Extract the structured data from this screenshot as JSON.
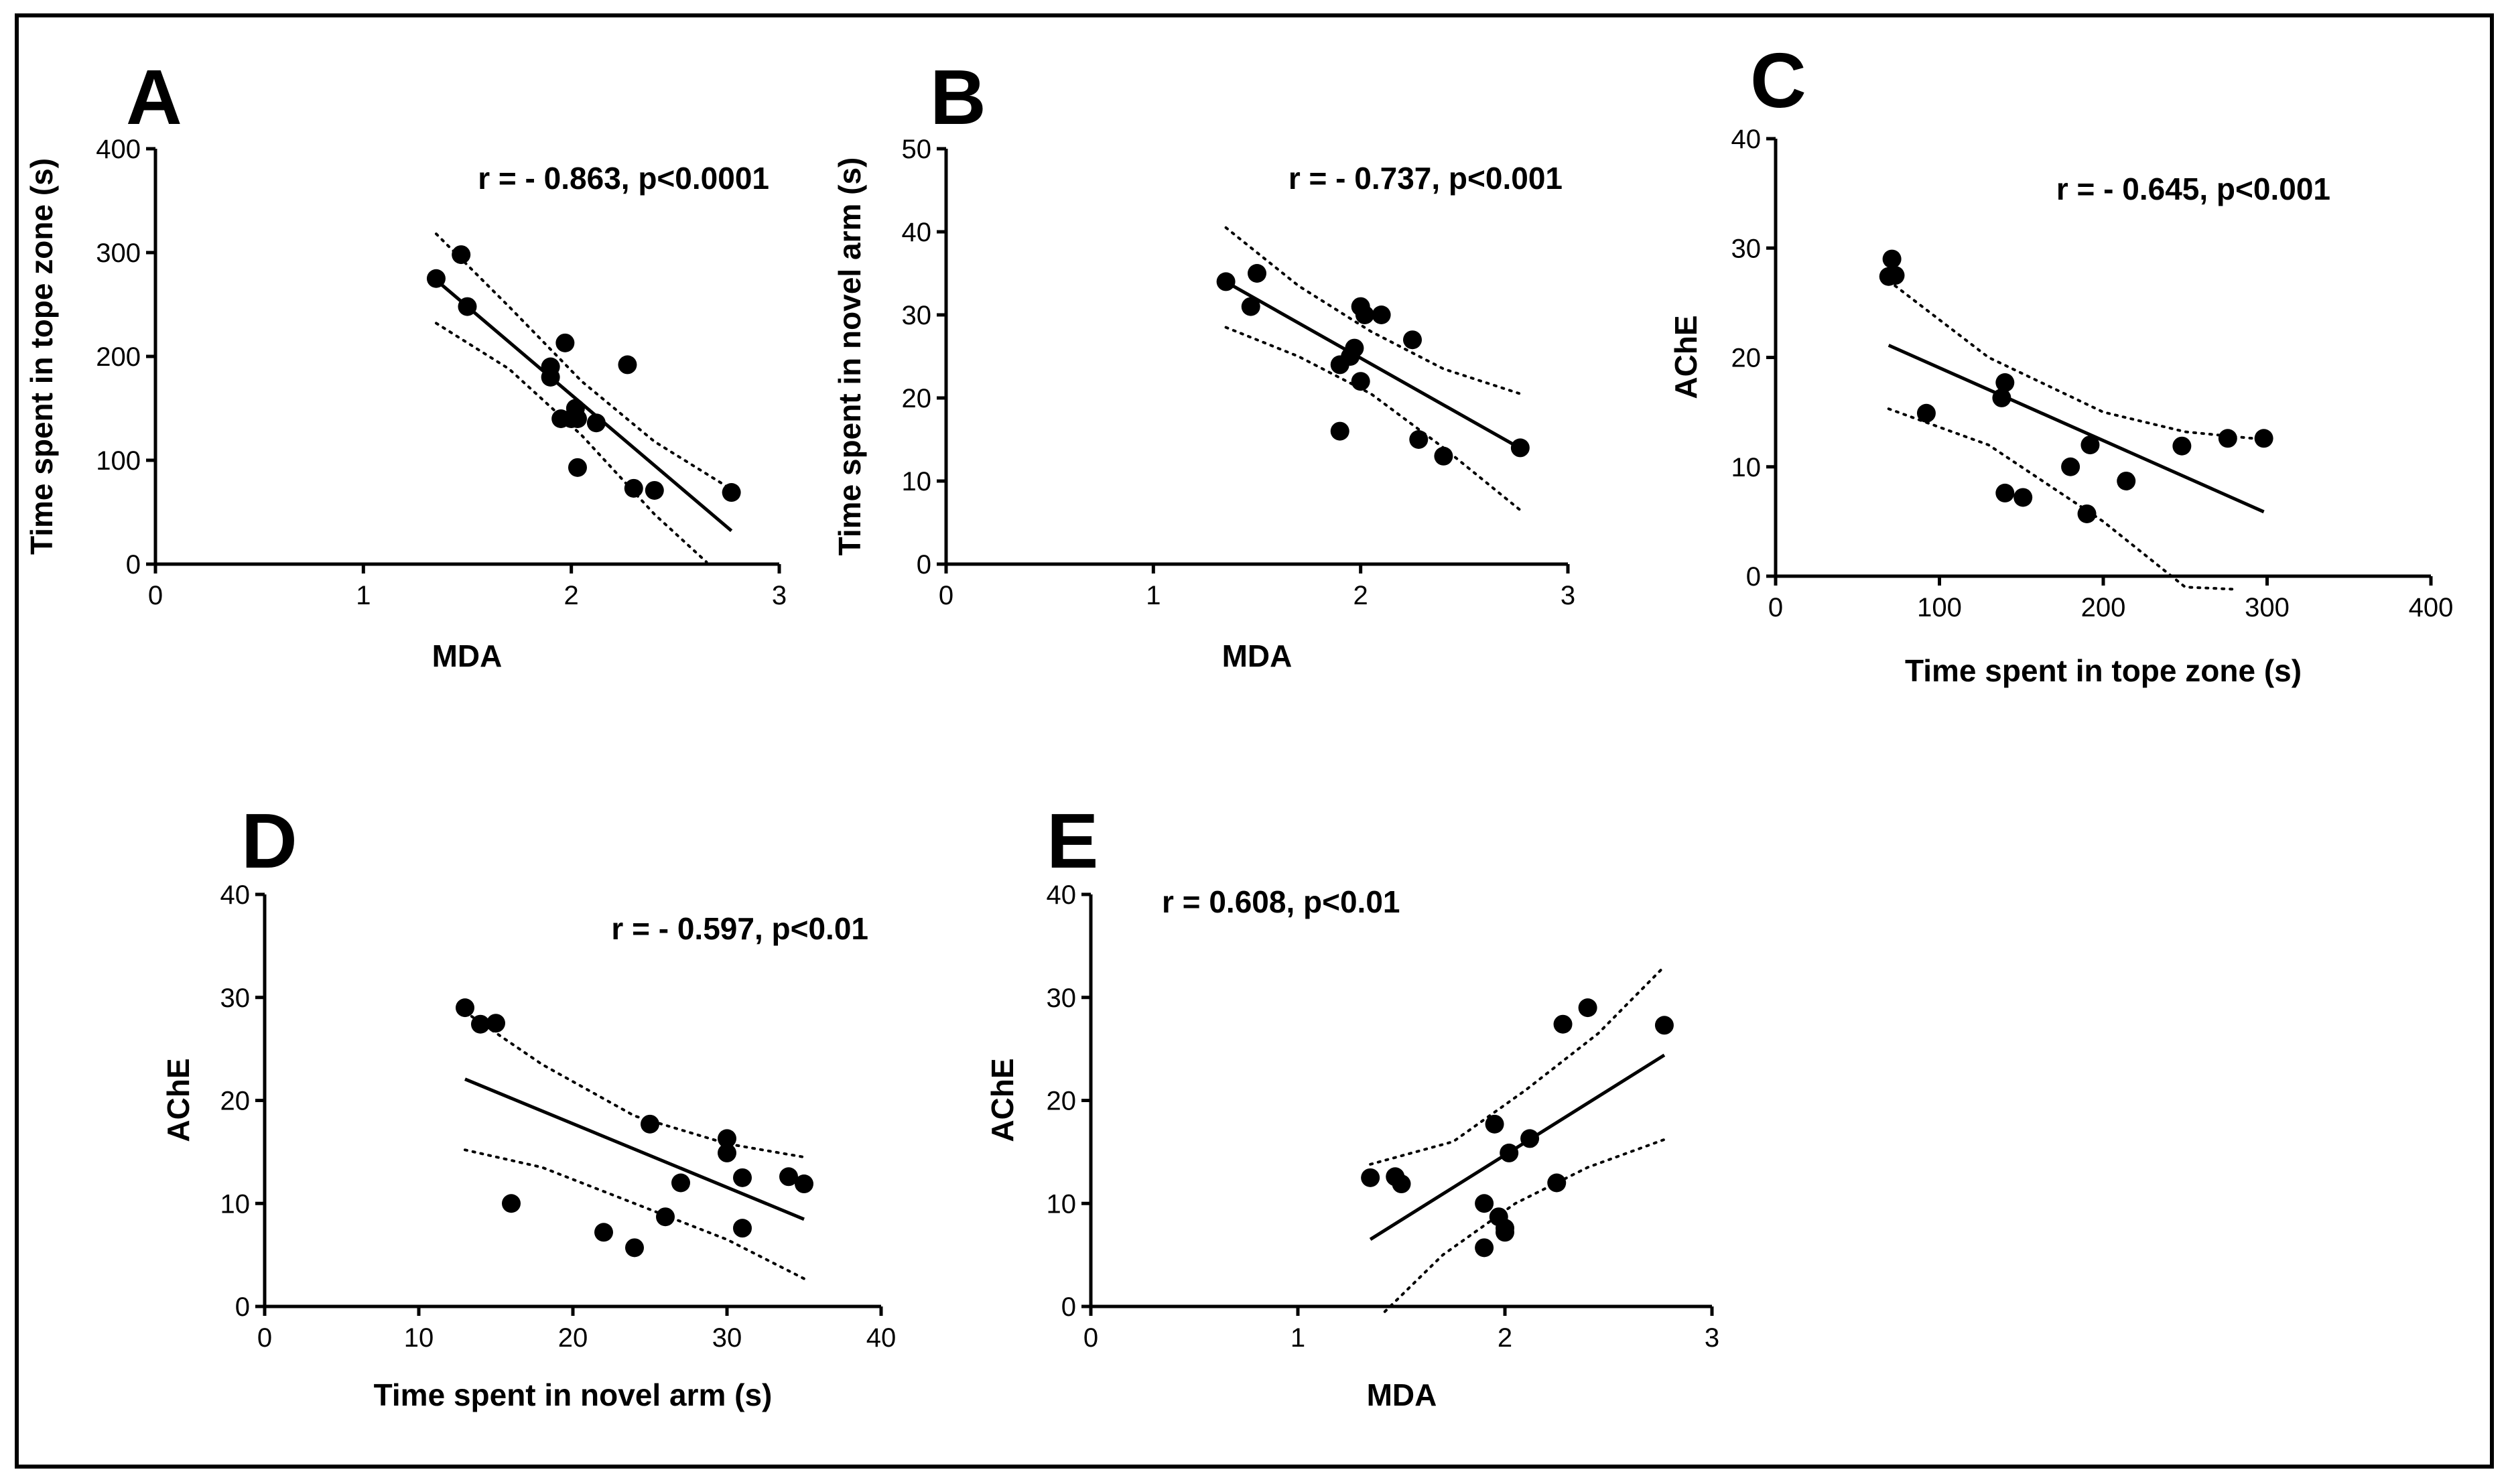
{
  "figure": {
    "border": "single black frame"
  },
  "chart_data": [
    {
      "id": "A",
      "panel_label": "A",
      "type": "scatter",
      "xlabel": "MDA",
      "ylabel": "Time spent in tope zone (s)",
      "xlim": [
        0,
        3
      ],
      "ylim": [
        0,
        400
      ],
      "xticks": [
        0,
        1,
        2,
        3
      ],
      "yticks": [
        0,
        100,
        200,
        300,
        400
      ],
      "annotation": "r = - 0.863, p<0.0001",
      "points": [
        [
          1.35,
          275
        ],
        [
          1.47,
          298
        ],
        [
          1.5,
          248
        ],
        [
          1.9,
          190
        ],
        [
          1.9,
          180
        ],
        [
          1.95,
          140
        ],
        [
          1.97,
          213
        ],
        [
          2.0,
          140
        ],
        [
          2.02,
          150
        ],
        [
          2.03,
          140
        ],
        [
          2.03,
          93
        ],
        [
          2.12,
          136
        ],
        [
          2.27,
          192
        ],
        [
          2.3,
          73
        ],
        [
          2.4,
          71
        ],
        [
          2.77,
          69
        ]
      ],
      "fit": {
        "x_range": [
          1.35,
          2.77
        ],
        "slope": -170,
        "intercept": 503
      },
      "ci_upper": [
        [
          1.35,
          318
        ],
        [
          1.7,
          248
        ],
        [
          2.05,
          176
        ],
        [
          2.4,
          118
        ],
        [
          2.77,
          72
        ]
      ],
      "ci_lower": [
        [
          1.35,
          232
        ],
        [
          1.7,
          188
        ],
        [
          2.05,
          124
        ],
        [
          2.4,
          48
        ],
        [
          2.65,
          2
        ]
      ]
    },
    {
      "id": "B",
      "panel_label": "B",
      "type": "scatter",
      "xlabel": "MDA",
      "ylabel": "Time spent in novel arm (s)",
      "xlim": [
        0,
        3
      ],
      "ylim": [
        0,
        50
      ],
      "xticks": [
        0,
        1,
        2,
        3
      ],
      "yticks": [
        0,
        10,
        20,
        30,
        40,
        50
      ],
      "annotation": "r = - 0.737, p<0.001",
      "points": [
        [
          1.35,
          34
        ],
        [
          1.47,
          31
        ],
        [
          1.5,
          35
        ],
        [
          1.9,
          24
        ],
        [
          1.9,
          16
        ],
        [
          1.95,
          25
        ],
        [
          1.97,
          26
        ],
        [
          2.0,
          31
        ],
        [
          2.0,
          22
        ],
        [
          2.02,
          30
        ],
        [
          2.1,
          30
        ],
        [
          2.25,
          27
        ],
        [
          2.28,
          15
        ],
        [
          2.4,
          13
        ],
        [
          2.77,
          14
        ]
      ],
      "fit": {
        "x_range": [
          1.35,
          2.77
        ],
        "slope": -14.1,
        "intercept": 53
      },
      "ci_upper": [
        [
          1.35,
          40.5
        ],
        [
          1.7,
          33.5
        ],
        [
          2.05,
          28
        ],
        [
          2.4,
          23.5
        ],
        [
          2.77,
          20.5
        ]
      ],
      "ci_lower": [
        [
          1.35,
          28.5
        ],
        [
          1.7,
          25
        ],
        [
          2.05,
          20.5
        ],
        [
          2.4,
          14
        ],
        [
          2.77,
          6.5
        ]
      ]
    },
    {
      "id": "C",
      "panel_label": "C",
      "type": "scatter",
      "xlabel": "Time spent in tope zone (s)",
      "ylabel": "AChE",
      "xlim": [
        0,
        400
      ],
      "ylim": [
        0,
        40
      ],
      "xticks": [
        0,
        100,
        200,
        300,
        400
      ],
      "yticks": [
        0,
        10,
        20,
        30,
        40
      ],
      "annotation": "r = - 0.645, p<0.001",
      "points": [
        [
          69,
          27.4
        ],
        [
          71,
          29
        ],
        [
          73,
          27.5
        ],
        [
          92,
          14.9
        ],
        [
          138,
          16.3
        ],
        [
          140,
          17.7
        ],
        [
          140,
          7.6
        ],
        [
          151,
          7.2
        ],
        [
          180,
          10
        ],
        [
          190,
          5.7
        ],
        [
          192,
          12
        ],
        [
          214,
          8.7
        ],
        [
          248,
          11.9
        ],
        [
          276,
          12.6
        ],
        [
          298,
          12.6
        ]
      ],
      "fit": {
        "x_range": [
          69,
          298
        ],
        "slope": -0.0665,
        "intercept": 25.7
      },
      "ci_upper": [
        [
          69,
          27
        ],
        [
          130,
          20
        ],
        [
          200,
          15
        ],
        [
          250,
          13.2
        ],
        [
          298,
          12.5
        ]
      ],
      "ci_lower": [
        [
          69,
          15.3
        ],
        [
          130,
          12
        ],
        [
          200,
          5
        ],
        [
          250,
          -1
        ],
        [
          281,
          -1.2
        ]
      ]
    },
    {
      "id": "D",
      "panel_label": "D",
      "type": "scatter",
      "xlabel": "Time spent in novel arm (s)",
      "ylabel": "AChE",
      "xlim": [
        0,
        40
      ],
      "ylim": [
        0,
        40
      ],
      "xticks": [
        0,
        10,
        20,
        30,
        40
      ],
      "yticks": [
        0,
        10,
        20,
        30,
        40
      ],
      "annotation": "r = - 0.597, p<0.01",
      "points": [
        [
          13,
          29
        ],
        [
          14,
          27.4
        ],
        [
          15,
          27.5
        ],
        [
          16,
          10
        ],
        [
          22,
          7.2
        ],
        [
          24,
          5.7
        ],
        [
          25,
          17.7
        ],
        [
          26,
          8.7
        ],
        [
          27,
          12
        ],
        [
          30,
          16.3
        ],
        [
          30,
          14.9
        ],
        [
          31,
          12.5
        ],
        [
          31,
          7.6
        ],
        [
          34,
          12.6
        ],
        [
          35,
          11.9
        ]
      ],
      "fit": {
        "x_range": [
          13,
          35
        ],
        "slope": -0.618,
        "intercept": 30.1
      },
      "ci_upper": [
        [
          13,
          28.6
        ],
        [
          18,
          23.5
        ],
        [
          24,
          18.5
        ],
        [
          30,
          15.8
        ],
        [
          35,
          14.5
        ]
      ],
      "ci_lower": [
        [
          13,
          15.2
        ],
        [
          18,
          13.5
        ],
        [
          24,
          10
        ],
        [
          30,
          6.5
        ],
        [
          35,
          2.7
        ]
      ]
    },
    {
      "id": "E",
      "panel_label": "E",
      "type": "scatter",
      "xlabel": "MDA",
      "ylabel": "AChE",
      "xlim": [
        0,
        3
      ],
      "ylim": [
        0,
        40
      ],
      "xticks": [
        0,
        1,
        2,
        3
      ],
      "yticks": [
        0,
        10,
        20,
        30,
        40
      ],
      "annotation": "r = 0.608, p<0.01",
      "points": [
        [
          1.35,
          12.5
        ],
        [
          1.47,
          12.6
        ],
        [
          1.5,
          11.9
        ],
        [
          1.9,
          10
        ],
        [
          1.9,
          5.7
        ],
        [
          1.95,
          17.7
        ],
        [
          1.97,
          8.7
        ],
        [
          2.0,
          7.6
        ],
        [
          2.0,
          7.2
        ],
        [
          2.02,
          14.9
        ],
        [
          2.12,
          16.3
        ],
        [
          2.25,
          12
        ],
        [
          2.28,
          27.4
        ],
        [
          2.4,
          29
        ],
        [
          2.77,
          27.3
        ]
      ],
      "fit": {
        "x_range": [
          1.35,
          2.77
        ],
        "slope": 12.6,
        "intercept": -10.5
      },
      "ci_upper": [
        [
          1.35,
          13.8
        ],
        [
          1.75,
          16
        ],
        [
          2.1,
          21
        ],
        [
          2.45,
          26.5
        ],
        [
          2.77,
          33
        ]
      ],
      "ci_lower": [
        [
          1.42,
          -0.5
        ],
        [
          1.7,
          5
        ],
        [
          2.05,
          10
        ],
        [
          2.4,
          13.5
        ],
        [
          2.77,
          16.2
        ]
      ]
    }
  ]
}
